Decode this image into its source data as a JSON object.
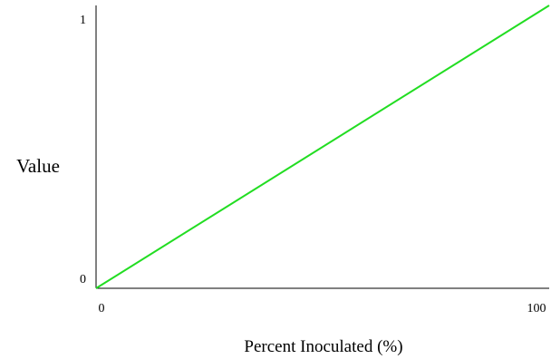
{
  "chart_data": {
    "type": "line",
    "title": "",
    "xlabel": "Percent Inoculated (%)",
    "ylabel": "Value",
    "xlim": [
      0,
      100
    ],
    "ylim": [
      0,
      1
    ],
    "x_ticks": [
      {
        "value": 0,
        "label": "0"
      },
      {
        "value": 100,
        "label": "100"
      }
    ],
    "y_ticks": [
      {
        "value": 0,
        "label": "0"
      },
      {
        "value": 1,
        "label": "1"
      }
    ],
    "grid": false,
    "legend": "none",
    "series": [
      {
        "color": "#22dd22",
        "x": [
          0,
          100
        ],
        "y": [
          0,
          1
        ]
      }
    ]
  }
}
